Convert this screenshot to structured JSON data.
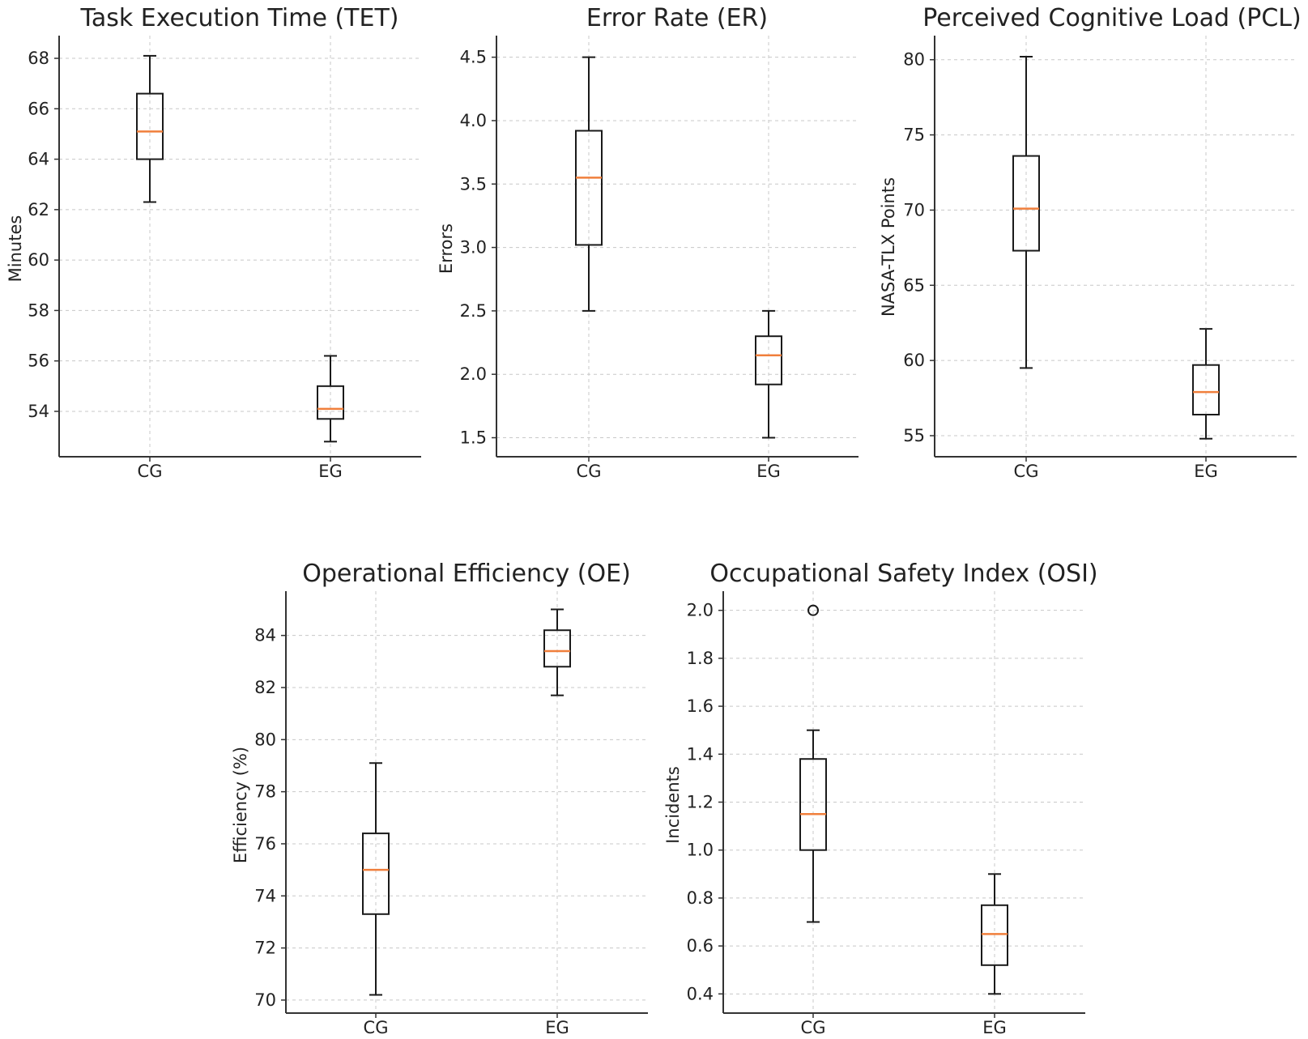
{
  "colors": {
    "median": "#f07f3c",
    "box": "#1a1a1a",
    "grid": "#c8c8c8"
  },
  "chart_data": [
    {
      "id": "tet",
      "type": "boxplot",
      "title": "Task Execution Time (TET)",
      "xlabel": "",
      "ylabel": "Minutes",
      "categories": [
        "CG",
        "EG"
      ],
      "ylim": [
        52.2,
        68.9
      ],
      "yticks": [
        54,
        56,
        58,
        60,
        62,
        64,
        66,
        68
      ],
      "ytick_labels": [
        "54",
        "56",
        "58",
        "60",
        "62",
        "64",
        "66",
        "68"
      ],
      "grid": true,
      "boxes": [
        {
          "group": "CG",
          "whislo": 62.3,
          "q1": 64.0,
          "med": 65.1,
          "q3": 66.6,
          "whishi": 68.1,
          "fliers": []
        },
        {
          "group": "EG",
          "whislo": 52.8,
          "q1": 53.7,
          "med": 54.1,
          "q3": 55.0,
          "whishi": 56.2,
          "fliers": []
        }
      ]
    },
    {
      "id": "er",
      "type": "boxplot",
      "title": "Error Rate (ER)",
      "xlabel": "",
      "ylabel": "Errors",
      "categories": [
        "CG",
        "EG"
      ],
      "ylim": [
        1.35,
        4.67
      ],
      "yticks": [
        1.5,
        2.0,
        2.5,
        3.0,
        3.5,
        4.0,
        4.5
      ],
      "ytick_labels": [
        "1.5",
        "2.0",
        "2.5",
        "3.0",
        "3.5",
        "4.0",
        "4.5"
      ],
      "grid": true,
      "boxes": [
        {
          "group": "CG",
          "whislo": 2.5,
          "q1": 3.02,
          "med": 3.55,
          "q3": 3.92,
          "whishi": 4.5,
          "fliers": []
        },
        {
          "group": "EG",
          "whislo": 1.5,
          "q1": 1.92,
          "med": 2.15,
          "q3": 2.3,
          "whishi": 2.5,
          "fliers": []
        }
      ]
    },
    {
      "id": "pcl",
      "type": "boxplot",
      "title": "Perceived Cognitive Load (PCL)",
      "xlabel": "",
      "ylabel": "NASA-TLX Points",
      "categories": [
        "CG",
        "EG"
      ],
      "ylim": [
        53.6,
        81.6
      ],
      "yticks": [
        55,
        60,
        65,
        70,
        75,
        80
      ],
      "ytick_labels": [
        "55",
        "60",
        "65",
        "70",
        "75",
        "80"
      ],
      "grid": true,
      "boxes": [
        {
          "group": "CG",
          "whislo": 59.5,
          "q1": 67.3,
          "med": 70.1,
          "q3": 73.6,
          "whishi": 80.2,
          "fliers": []
        },
        {
          "group": "EG",
          "whislo": 54.8,
          "q1": 56.4,
          "med": 57.9,
          "q3": 59.7,
          "whishi": 62.1,
          "fliers": []
        }
      ]
    },
    {
      "id": "oe",
      "type": "boxplot",
      "title": "Operational Efficiency (OE)",
      "xlabel": "",
      "ylabel": "Efficiency (%)",
      "categories": [
        "CG",
        "EG"
      ],
      "ylim": [
        69.5,
        85.7
      ],
      "yticks": [
        70,
        72,
        74,
        76,
        78,
        80,
        82,
        84
      ],
      "ytick_labels": [
        "70",
        "72",
        "74",
        "76",
        "78",
        "80",
        "82",
        "84"
      ],
      "grid": true,
      "boxes": [
        {
          "group": "CG",
          "whislo": 70.2,
          "q1": 73.3,
          "med": 75.0,
          "q3": 76.4,
          "whishi": 79.1,
          "fliers": []
        },
        {
          "group": "EG",
          "whislo": 81.7,
          "q1": 82.8,
          "med": 83.4,
          "q3": 84.2,
          "whishi": 85.0,
          "fliers": []
        }
      ]
    },
    {
      "id": "osi",
      "type": "boxplot",
      "title": "Occupational Safety Index (OSI)",
      "xlabel": "",
      "ylabel": "Incidents",
      "categories": [
        "CG",
        "EG"
      ],
      "ylim": [
        0.32,
        2.08
      ],
      "yticks": [
        0.4,
        0.6,
        0.8,
        1.0,
        1.2,
        1.4,
        1.6,
        1.8,
        2.0
      ],
      "ytick_labels": [
        "0.4",
        "0.6",
        "0.8",
        "1.0",
        "1.2",
        "1.4",
        "1.6",
        "1.8",
        "2.0"
      ],
      "grid": true,
      "boxes": [
        {
          "group": "CG",
          "whislo": 0.7,
          "q1": 1.0,
          "med": 1.15,
          "q3": 1.38,
          "whishi": 1.5,
          "fliers": [
            2.0
          ]
        },
        {
          "group": "EG",
          "whislo": 0.4,
          "q1": 0.52,
          "med": 0.65,
          "q3": 0.77,
          "whishi": 0.9,
          "fliers": []
        }
      ]
    }
  ]
}
